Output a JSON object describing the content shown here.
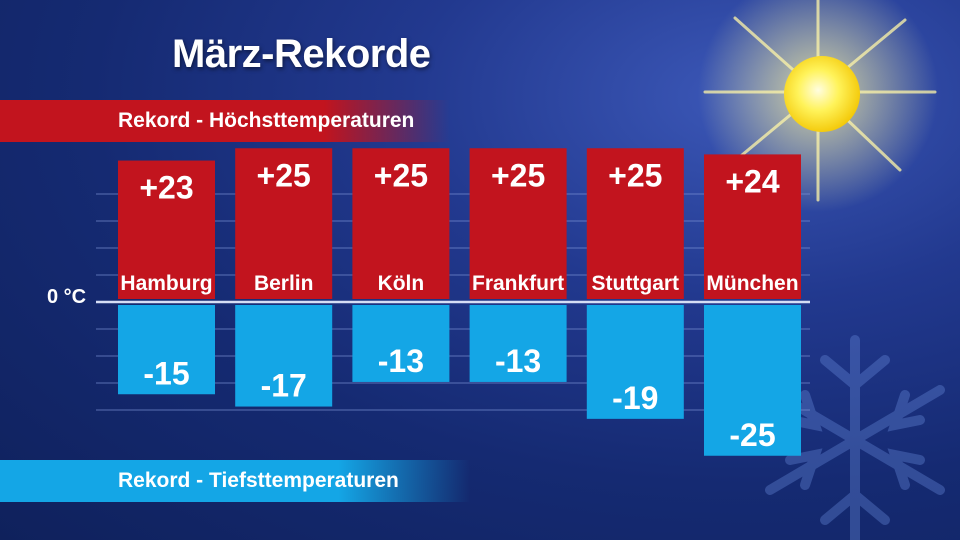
{
  "title": "März-Rekorde",
  "bands": {
    "high": "Rekord - Höchsttemperaturen",
    "low": "Rekord - Tiefsttemperaturen"
  },
  "zero_label": "0 °C",
  "colors": {
    "high": "#c2141e",
    "low": "#14a6e6",
    "background": "#152a72",
    "sun": "#fff24a"
  },
  "decorations": [
    "sun-icon",
    "snowflake-icon"
  ],
  "chart_data": {
    "type": "bar",
    "title": "März-Rekorde",
    "xlabel": "",
    "ylabel": "",
    "ylim": [
      -25,
      25
    ],
    "grid": true,
    "legend": "none",
    "categories": [
      "Hamburg",
      "Berlin",
      "Köln",
      "Frankfurt",
      "Stuttgart",
      "München"
    ],
    "series": [
      {
        "name": "Rekord - Höchsttemperaturen",
        "values": [
          23,
          25,
          25,
          25,
          25,
          24
        ],
        "labels": [
          "+23",
          "+25",
          "+25",
          "+25",
          "+25",
          "+24"
        ]
      },
      {
        "name": "Rekord - Tiefsttemperaturen",
        "values": [
          -15,
          -17,
          -13,
          -13,
          -19,
          -25
        ],
        "labels": [
          "-15",
          "-17",
          "-13",
          "-13",
          "-19",
          "-25"
        ]
      }
    ]
  }
}
